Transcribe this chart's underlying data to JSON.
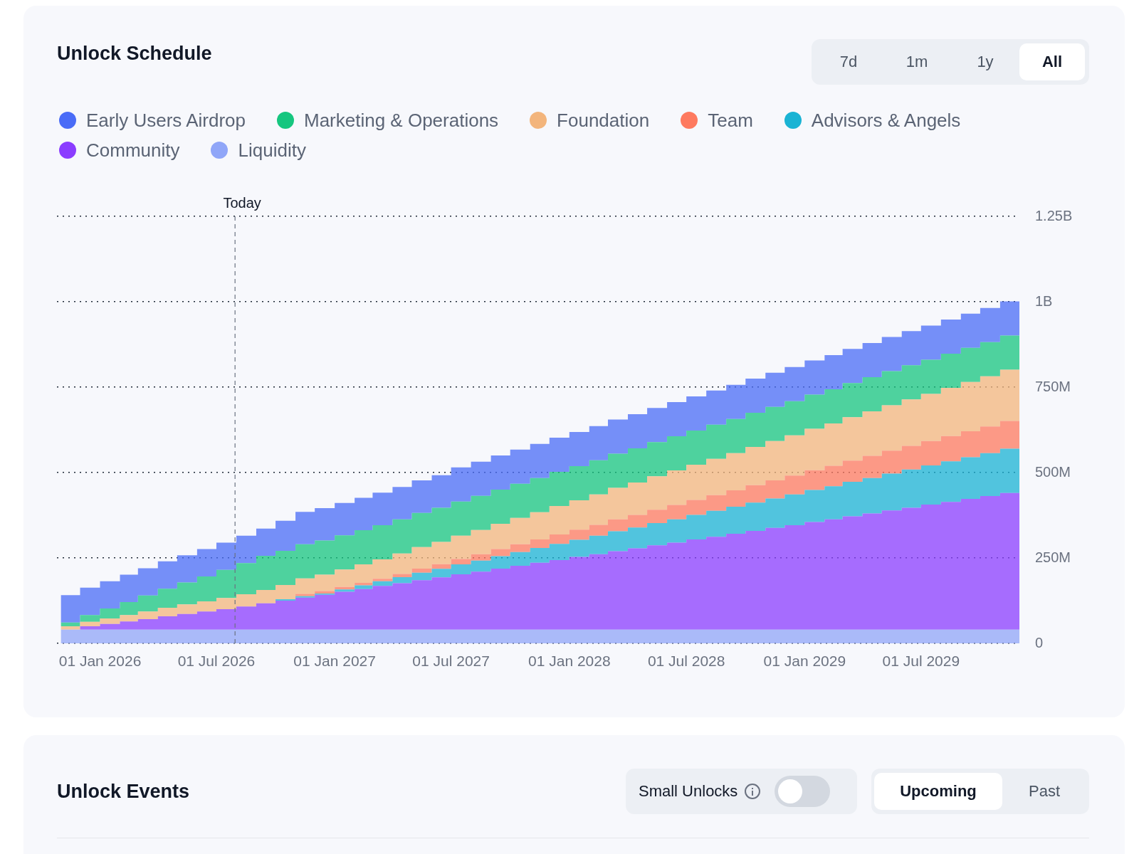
{
  "chart_data": {
    "type": "area",
    "stacked": true,
    "title": "Unlock Schedule",
    "x": [
      "2025-11-01",
      "2025-12-01",
      "2026-01-01",
      "2026-02-01",
      "2026-03-01",
      "2026-04-01",
      "2026-05-01",
      "2026-06-01",
      "2026-07-01",
      "2026-08-01",
      "2026-09-01",
      "2026-10-01",
      "2026-11-01",
      "2026-12-01",
      "2027-01-01",
      "2027-02-01",
      "2027-03-01",
      "2027-04-01",
      "2027-05-01",
      "2027-06-01",
      "2027-07-01",
      "2027-08-01",
      "2027-09-01",
      "2027-10-01",
      "2027-11-01",
      "2027-12-01",
      "2028-01-01",
      "2028-02-01",
      "2028-03-01",
      "2028-04-01",
      "2028-05-01",
      "2028-06-01",
      "2028-07-01",
      "2028-08-01",
      "2028-09-01",
      "2028-10-01",
      "2028-11-01",
      "2028-12-01",
      "2029-01-01",
      "2029-02-01",
      "2029-03-01",
      "2029-04-01",
      "2029-05-01",
      "2029-06-01",
      "2029-07-01",
      "2029-08-01",
      "2029-09-01",
      "2029-10-01",
      "2029-11-01",
      "2029-12-01"
    ],
    "series": [
      {
        "name": "Liquidity",
        "color": "#90a6f8",
        "values": [
          40000000,
          40000000,
          40000000,
          40000000,
          40000000,
          40000000,
          40000000,
          40000000,
          40000000,
          40000000,
          40000000,
          40000000,
          40000000,
          40000000,
          40000000,
          40000000,
          40000000,
          40000000,
          40000000,
          40000000,
          40000000,
          40000000,
          40000000,
          40000000,
          40000000,
          40000000,
          40000000,
          40000000,
          40000000,
          40000000,
          40000000,
          40000000,
          40000000,
          40000000,
          40000000,
          40000000,
          40000000,
          40000000,
          40000000,
          40000000,
          40000000,
          40000000,
          40000000,
          40000000,
          40000000,
          40000000,
          40000000,
          40000000,
          40000000,
          40000000
        ]
      },
      {
        "name": "Community",
        "color": "#8b3dff",
        "values": [
          0,
          10000000,
          17000000,
          24000000,
          31000000,
          39000000,
          46000000,
          53000000,
          60000000,
          68000000,
          77000000,
          85000000,
          94000000,
          102000000,
          111000000,
          119000000,
          128000000,
          136000000,
          145000000,
          153000000,
          162000000,
          170000000,
          179000000,
          187000000,
          196000000,
          204000000,
          213000000,
          221000000,
          230000000,
          238000000,
          247000000,
          255000000,
          264000000,
          272000000,
          281000000,
          289000000,
          298000000,
          306000000,
          315000000,
          323000000,
          332000000,
          340000000,
          349000000,
          357000000,
          366000000,
          374000000,
          383000000,
          391000000,
          400000000,
          400000000
        ]
      },
      {
        "name": "Advisors & Angels",
        "color": "#1ab3d4",
        "values": [
          0,
          0,
          0,
          0,
          0,
          0,
          0,
          0,
          0,
          0,
          0,
          4000000,
          4000000,
          4000000,
          7000000,
          11000000,
          14000000,
          18000000,
          22000000,
          25000000,
          29000000,
          32000000,
          36000000,
          40000000,
          43000000,
          47000000,
          50000000,
          54000000,
          58000000,
          61000000,
          65000000,
          68000000,
          72000000,
          76000000,
          79000000,
          83000000,
          86000000,
          90000000,
          94000000,
          97000000,
          101000000,
          104000000,
          108000000,
          112000000,
          115000000,
          119000000,
          122000000,
          126000000,
          130000000,
          130000000
        ]
      },
      {
        "name": "Team",
        "color": "#fe7a5f",
        "values": [
          0,
          0,
          0,
          0,
          0,
          0,
          0,
          0,
          0,
          0,
          0,
          0,
          7000000,
          7000000,
          7000000,
          7000000,
          7000000,
          9000000,
          12000000,
          14000000,
          16000000,
          19000000,
          21000000,
          23000000,
          25000000,
          28000000,
          30000000,
          32000000,
          35000000,
          37000000,
          39000000,
          42000000,
          44000000,
          46000000,
          48000000,
          51000000,
          53000000,
          55000000,
          58000000,
          60000000,
          62000000,
          65000000,
          67000000,
          69000000,
          71000000,
          74000000,
          76000000,
          78000000,
          81000000,
          81000000
        ]
      },
      {
        "name": "Foundation",
        "color": "#f3b57c",
        "values": [
          10000000,
          13000000,
          16000000,
          19000000,
          22000000,
          25000000,
          28000000,
          30000000,
          33000000,
          36000000,
          39000000,
          42000000,
          45000000,
          48000000,
          51000000,
          54000000,
          57000000,
          60000000,
          63000000,
          65000000,
          68000000,
          71000000,
          74000000,
          77000000,
          80000000,
          83000000,
          86000000,
          89000000,
          92000000,
          95000000,
          98000000,
          101000000,
          103000000,
          106000000,
          109000000,
          112000000,
          115000000,
          118000000,
          121000000,
          124000000,
          127000000,
          130000000,
          133000000,
          136000000,
          138000000,
          141000000,
          144000000,
          147000000,
          150000000,
          150000000
        ]
      },
      {
        "name": "Marketing & Operations",
        "color": "#16c67f",
        "values": [
          11000000,
          20000000,
          29000000,
          38000000,
          47000000,
          56000000,
          64000000,
          73000000,
          82000000,
          91000000,
          100000000,
          100000000,
          100000000,
          100000000,
          100000000,
          100000000,
          100000000,
          100000000,
          100000000,
          100000000,
          100000000,
          100000000,
          100000000,
          100000000,
          100000000,
          100000000,
          100000000,
          100000000,
          100000000,
          100000000,
          100000000,
          100000000,
          100000000,
          100000000,
          100000000,
          100000000,
          100000000,
          100000000,
          100000000,
          100000000,
          100000000,
          100000000,
          100000000,
          100000000,
          100000000,
          100000000,
          100000000,
          100000000,
          100000000,
          100000000
        ]
      },
      {
        "name": "Early Users Airdrop",
        "color": "#4a6cf7",
        "values": [
          80000000,
          80000000,
          80000000,
          80000000,
          80000000,
          80000000,
          80000000,
          80000000,
          80000000,
          80000000,
          80000000,
          88000000,
          95000000,
          95000000,
          95000000,
          95000000,
          95000000,
          95000000,
          95000000,
          95000000,
          100000000,
          100000000,
          100000000,
          100000000,
          100000000,
          100000000,
          100000000,
          100000000,
          100000000,
          100000000,
          100000000,
          100000000,
          100000000,
          100000000,
          100000000,
          100000000,
          100000000,
          100000000,
          100000000,
          100000000,
          100000000,
          100000000,
          100000000,
          100000000,
          100000000,
          100000000,
          100000000,
          100000000,
          100000000,
          100000000
        ]
      }
    ],
    "xlim": [
      "2025-10-26",
      "2029-12-01"
    ],
    "xticks": [
      {
        "value": "2026-01-01",
        "label": "01 Jan 2026"
      },
      {
        "value": "2026-07-01",
        "label": "01 Jul 2026"
      },
      {
        "value": "2027-01-01",
        "label": "01 Jan 2027"
      },
      {
        "value": "2027-07-01",
        "label": "01 Jul 2027"
      },
      {
        "value": "2028-01-01",
        "label": "01 Jan 2028"
      },
      {
        "value": "2028-07-01",
        "label": "01 Jul 2028"
      },
      {
        "value": "2029-01-01",
        "label": "01 Jan 2029"
      },
      {
        "value": "2029-07-01",
        "label": "01 Jul 2029"
      }
    ],
    "ylim": [
      0,
      1250000000
    ],
    "yticks": [
      0,
      {
        "value": 250000000,
        "label": "250M"
      },
      {
        "value": 500000000,
        "label": "500M"
      },
      {
        "value": 750000000,
        "label": "750M"
      },
      {
        "value": 1000000000,
        "label": "1B"
      },
      {
        "value": 1250000000,
        "label": "1.25B"
      }
    ],
    "grid": "y",
    "legend": "top",
    "ref_lines": [
      {
        "axis": "x",
        "value": "2026-07-30",
        "label": "Today",
        "line_style": "dashed"
      }
    ],
    "annotations": [
      "7d",
      "1m",
      "1y",
      "All",
      "Unlock Events",
      "Small Unlocks",
      "Upcoming",
      "Past"
    ]
  }
}
